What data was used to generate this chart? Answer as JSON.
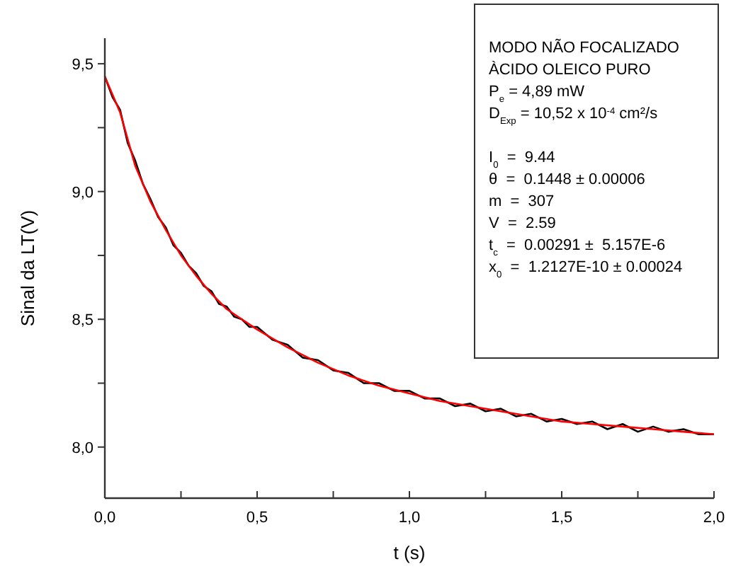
{
  "chart_data": {
    "type": "line",
    "xlabel": "t (s)",
    "ylabel": "Sinal da LT(V)",
    "xlim": [
      0,
      2
    ],
    "ylim": [
      7.8,
      9.6
    ],
    "xticks": [
      {
        "value": 0,
        "label": "0,0"
      },
      {
        "value": 0.25,
        "label": null
      },
      {
        "value": 0.5,
        "label": "0,5"
      },
      {
        "value": 0.75,
        "label": null
      },
      {
        "value": 1,
        "label": "1,0"
      },
      {
        "value": 1.25,
        "label": null
      },
      {
        "value": 1.5,
        "label": "1,5"
      },
      {
        "value": 1.75,
        "label": null
      },
      {
        "value": 2,
        "label": "2,0"
      }
    ],
    "yticks": [
      {
        "value": 8,
        "label": "8,0"
      },
      {
        "value": 8.25,
        "label": null
      },
      {
        "value": 8.5,
        "label": "8,5"
      },
      {
        "value": 8.75,
        "label": null
      },
      {
        "value": 9,
        "label": "9,0"
      },
      {
        "value": 9.25,
        "label": null
      },
      {
        "value": 9.5,
        "label": "9,5"
      }
    ],
    "grid": false,
    "marker": "none",
    "line_style": "solid",
    "series": [
      {
        "color": "#000000",
        "x": [
          0,
          0.025,
          0.05,
          0.075,
          0.1,
          0.125,
          0.15,
          0.175,
          0.2,
          0.225,
          0.25,
          0.275,
          0.3,
          0.325,
          0.35,
          0.375,
          0.4,
          0.425,
          0.45,
          0.475,
          0.5,
          0.55,
          0.6,
          0.65,
          0.7,
          0.75,
          0.8,
          0.85,
          0.9,
          0.95,
          1,
          1.05,
          1.1,
          1.15,
          1.2,
          1.25,
          1.3,
          1.35,
          1.4,
          1.45,
          1.5,
          1.55,
          1.6,
          1.65,
          1.7,
          1.75,
          1.8,
          1.85,
          1.9,
          1.95,
          2
        ],
        "values": [
          9.45,
          9.37,
          9.32,
          9.19,
          9.12,
          9.03,
          8.97,
          8.9,
          8.86,
          8.79,
          8.76,
          8.71,
          8.68,
          8.63,
          8.61,
          8.56,
          8.55,
          8.51,
          8.5,
          8.47,
          8.47,
          8.42,
          8.4,
          8.35,
          8.34,
          8.3,
          8.29,
          8.25,
          8.25,
          8.22,
          8.22,
          8.19,
          8.19,
          8.16,
          8.17,
          8.14,
          8.15,
          8.12,
          8.13,
          8.1,
          8.11,
          8.09,
          8.1,
          8.07,
          8.09,
          8.06,
          8.08,
          8.06,
          8.07,
          8.05,
          8.05
        ]
      },
      {
        "color": "#ff0000",
        "x": [
          0,
          0.05,
          0.1,
          0.15,
          0.2,
          0.25,
          0.3,
          0.35,
          0.4,
          0.45,
          0.5,
          0.6,
          0.7,
          0.8,
          0.9,
          1,
          1.1,
          1.2,
          1.3,
          1.4,
          1.5,
          1.6,
          1.7,
          1.8,
          1.9,
          2
        ],
        "values": [
          9.45,
          9.31,
          9.1,
          8.96,
          8.85,
          8.75,
          8.67,
          8.6,
          8.54,
          8.5,
          8.46,
          8.39,
          8.33,
          8.28,
          8.24,
          8.21,
          8.18,
          8.16,
          8.14,
          8.12,
          8.1,
          8.09,
          8.08,
          8.07,
          8.06,
          8.05
        ]
      }
    ],
    "annotations": [
      "MODO NÃO FOCALIZADO",
      "ÀCIDO OLEICO PURO",
      "P$_{e}$ = 4,89 mW",
      "D$_{Exp}$ = 10,52 x 10$^{-4}$ cm²/s",
      "I$_{0}$  =  9.44",
      "θ  =  0.1448 ± 0.00006",
      "m  =  307",
      "V  =  2.59",
      "t$_{c}$  =  0.00291 ±  5.157E-6",
      "x$_{0}$  =  1.2127E-10 ± 0.00024"
    ]
  }
}
